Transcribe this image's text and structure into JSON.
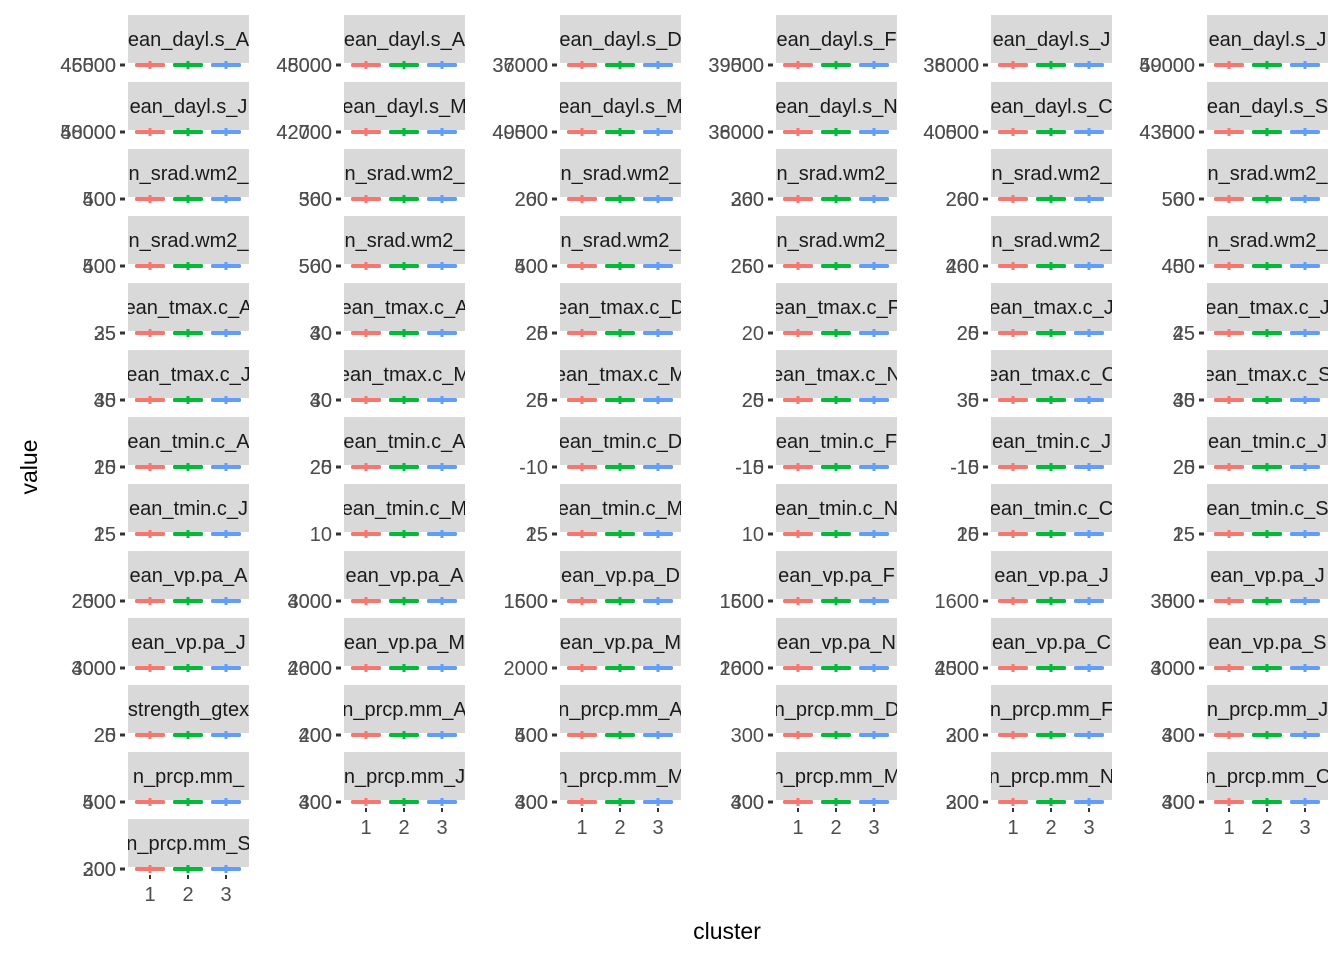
{
  "chart_data": {
    "type": "boxplot-facets",
    "xlabel": "cluster",
    "ylabel": "value",
    "categories": [
      "1",
      "2",
      "3"
    ],
    "colors": {
      "1": "#F8766D",
      "2": "#00BA38",
      "3": "#619CFF"
    },
    "strip_background": "#d9d9d9",
    "panels": [
      {
        "strip": "ean_dayl.s_A",
        "y_ticks": [
          "46500",
          "45000"
        ],
        "x_ticks": false
      },
      {
        "strip": "ean_dayl.s_A",
        "y_ticks": [
          "48000",
          "45000"
        ],
        "x_ticks": false
      },
      {
        "strip": "ean_dayl.s_D",
        "y_ticks": [
          "37000",
          "36000"
        ],
        "x_ticks": false
      },
      {
        "strip": "ean_dayl.s_F",
        "y_ticks": [
          "39000",
          "39500"
        ],
        "x_ticks": false
      },
      {
        "strip": "ean_dayl.s_J",
        "y_ticks": [
          "36000",
          "38000"
        ],
        "x_ticks": false
      },
      {
        "strip": "ean_dayl.s_J",
        "y_ticks": [
          "49000",
          "50000"
        ],
        "x_ticks": false
      },
      {
        "strip": "ean_dayl.s_J",
        "y_ticks": [
          "50000",
          "48000"
        ],
        "x_ticks": false
      },
      {
        "strip": "ean_dayl.s_M",
        "y_ticks": [
          "42000",
          "42700"
        ],
        "x_ticks": false
      },
      {
        "strip": "ean_dayl.s_M",
        "y_ticks": [
          "49500",
          "40000"
        ],
        "x_ticks": false
      },
      {
        "strip": "ean_dayl.s_N",
        "y_ticks": [
          "36000",
          "38000"
        ],
        "x_ticks": false
      },
      {
        "strip": "ean_dayl.s_C",
        "y_ticks": [
          "40500",
          "40000"
        ],
        "x_ticks": false
      },
      {
        "strip": "ean_dayl.s_S",
        "y_ticks": [
          "43000",
          "43500"
        ],
        "x_ticks": false
      },
      {
        "strip": "n_srad.wm2_",
        "y_ticks": [
          "400",
          "500"
        ],
        "x_ticks": false
      },
      {
        "strip": "n_srad.wm2_",
        "y_ticks": [
          "500",
          "360"
        ],
        "x_ticks": false
      },
      {
        "strip": "n_srad.wm2_",
        "y_ticks": [
          "200",
          "260"
        ],
        "x_ticks": false
      },
      {
        "strip": "n_srad.wm2_",
        "y_ticks": [
          "300",
          "260"
        ],
        "x_ticks": false
      },
      {
        "strip": "n_srad.wm2_",
        "y_ticks": [
          "200",
          "260"
        ],
        "x_ticks": false
      },
      {
        "strip": "n_srad.wm2_",
        "y_ticks": [
          "500",
          "560"
        ],
        "x_ticks": false
      },
      {
        "strip": "n_srad.wm2_",
        "y_ticks": [
          "500",
          "400"
        ],
        "x_ticks": false
      },
      {
        "strip": "n_srad.wm2_",
        "y_ticks": [
          "560",
          "500"
        ],
        "x_ticks": false
      },
      {
        "strip": "n_srad.wm2_",
        "y_ticks": [
          "500",
          "400"
        ],
        "x_ticks": false
      },
      {
        "strip": "n_srad.wm2_",
        "y_ticks": [
          "260",
          "250"
        ],
        "x_ticks": false
      },
      {
        "strip": "n_srad.wm2_",
        "y_ticks": [
          "400",
          "260"
        ],
        "x_ticks": false
      },
      {
        "strip": "n_srad.wm2_",
        "y_ticks": [
          "450",
          "400"
        ],
        "x_ticks": false
      },
      {
        "strip": "ean_tmax.c_A",
        "y_ticks": [
          "35",
          "25"
        ],
        "x_ticks": false
      },
      {
        "strip": "ean_tmax.c_A",
        "y_ticks": [
          "30",
          "40"
        ],
        "x_ticks": false
      },
      {
        "strip": "ean_tmax.c_D",
        "y_ticks": [
          "25",
          "20"
        ],
        "x_ticks": false
      },
      {
        "strip": "ean_tmax.c_F",
        "y_ticks": [
          "20"
        ],
        "x_ticks": false
      },
      {
        "strip": "ean_tmax.c_J",
        "y_ticks": [
          "20",
          "25"
        ],
        "x_ticks": false
      },
      {
        "strip": "ean_tmax.c_J",
        "y_ticks": [
          "45",
          "25"
        ],
        "x_ticks": false
      },
      {
        "strip": "ean_tmax.c_J",
        "y_ticks": [
          "35",
          "40"
        ],
        "x_ticks": false
      },
      {
        "strip": "ean_tmax.c_M",
        "y_ticks": [
          "30",
          "40"
        ],
        "x_ticks": false
      },
      {
        "strip": "ean_tmax.c_M",
        "y_ticks": [
          "25",
          "20"
        ],
        "x_ticks": false
      },
      {
        "strip": "ean_tmax.c_N",
        "y_ticks": [
          "25",
          "20"
        ],
        "x_ticks": false
      },
      {
        "strip": "ean_tmax.c_C",
        "y_ticks": [
          "35",
          "30"
        ],
        "x_ticks": false
      },
      {
        "strip": "ean_tmax.c_S",
        "y_ticks": [
          "40",
          "35"
        ],
        "x_ticks": false
      },
      {
        "strip": "ean_tmin.c_A",
        "y_ticks": [
          "20",
          "15"
        ],
        "x_ticks": false
      },
      {
        "strip": "ean_tmin.c_A",
        "y_ticks": [
          "25",
          "20"
        ],
        "x_ticks": false
      },
      {
        "strip": "ean_tmin.c_D",
        "y_ticks": [
          "-10"
        ],
        "x_ticks": false
      },
      {
        "strip": "ean_tmin.c_F",
        "y_ticks": [
          "-15",
          "-10"
        ],
        "x_ticks": false
      },
      {
        "strip": "ean_tmin.c_J",
        "y_ticks": [
          "-15",
          "-10"
        ],
        "x_ticks": false
      },
      {
        "strip": "ean_tmin.c_J",
        "y_ticks": [
          "25",
          "20"
        ],
        "x_ticks": false
      },
      {
        "strip": "ean_tmin.c_J",
        "y_ticks": [
          "25",
          "15"
        ],
        "x_ticks": false
      },
      {
        "strip": "ean_tmin.c_M",
        "y_ticks": [
          "10"
        ],
        "x_ticks": false
      },
      {
        "strip": "ean_tmin.c_M",
        "y_ticks": [
          "25",
          "15"
        ],
        "x_ticks": false
      },
      {
        "strip": "ean_tmin.c_N",
        "y_ticks": [
          "10"
        ],
        "x_ticks": false
      },
      {
        "strip": "ean_tmin.c_C",
        "y_ticks": [
          "20",
          "15"
        ],
        "x_ticks": false
      },
      {
        "strip": "ean_tmin.c_S",
        "y_ticks": [
          "25",
          "15"
        ],
        "x_ticks": false
      },
      {
        "strip": "ean_vp.pa_A",
        "y_ticks": [
          "2500",
          "2000"
        ],
        "x_ticks": false
      },
      {
        "strip": "ean_vp.pa_A",
        "y_ticks": [
          "3000",
          "4000"
        ],
        "x_ticks": false
      },
      {
        "strip": "ean_vp.pa_D",
        "y_ticks": [
          "1600",
          "1500"
        ],
        "x_ticks": false
      },
      {
        "strip": "ean_vp.pa_F",
        "y_ticks": [
          "1500",
          "1600"
        ],
        "x_ticks": false
      },
      {
        "strip": "ean_vp.pa_J",
        "y_ticks": [
          "1600"
        ],
        "x_ticks": false
      },
      {
        "strip": "ean_vp.pa_J",
        "y_ticks": [
          "3000",
          "3500"
        ],
        "x_ticks": false
      },
      {
        "strip": "ean_vp.pa_J",
        "y_ticks": [
          "3000",
          "4000"
        ],
        "x_ticks": false
      },
      {
        "strip": "ean_vp.pa_M",
        "y_ticks": [
          "2600",
          "4000"
        ],
        "x_ticks": false
      },
      {
        "strip": "ean_vp.pa_M",
        "y_ticks": [
          "2000"
        ],
        "x_ticks": false
      },
      {
        "strip": "ean_vp.pa_N",
        "y_ticks": [
          "1600",
          "2000"
        ],
        "x_ticks": false
      },
      {
        "strip": "ean_vp.pa_C",
        "y_ticks": [
          "2500",
          "4000"
        ],
        "x_ticks": false
      },
      {
        "strip": "ean_vp.pa_S",
        "y_ticks": [
          "3000",
          "4000"
        ],
        "x_ticks": false
      },
      {
        "strip": "strength_gtex",
        "y_ticks": [
          "25",
          "20"
        ],
        "x_ticks": false
      },
      {
        "strip": "n_prcp.mm_A",
        "y_ticks": [
          "400",
          "200"
        ],
        "x_ticks": false
      },
      {
        "strip": "n_prcp.mm_A",
        "y_ticks": [
          "500",
          "400"
        ],
        "x_ticks": false
      },
      {
        "strip": "n_prcp.mm_D",
        "y_ticks": [
          "300"
        ],
        "x_ticks": false
      },
      {
        "strip": "n_prcp.mm_F",
        "y_ticks": [
          "300",
          "200"
        ],
        "x_ticks": false
      },
      {
        "strip": "n_prcp.mm_J",
        "y_ticks": [
          "400",
          "300"
        ],
        "x_ticks": false
      },
      {
        "strip": "n_prcp.mm_",
        "y_ticks": [
          "400",
          "500"
        ],
        "x_ticks": false
      },
      {
        "strip": "n_prcp.mm_J",
        "y_ticks": [
          "400",
          "300"
        ],
        "x_ticks": true
      },
      {
        "strip": "n_prcp.mm_M",
        "y_ticks": [
          "400",
          "300"
        ],
        "x_ticks": true
      },
      {
        "strip": "n_prcp.mm_M",
        "y_ticks": [
          "400",
          "300"
        ],
        "x_ticks": true
      },
      {
        "strip": "n_prcp.mm_N",
        "y_ticks": [
          "300",
          "200"
        ],
        "x_ticks": true
      },
      {
        "strip": "n_prcp.mm_C",
        "y_ticks": [
          "400",
          "300"
        ],
        "x_ticks": true
      },
      {
        "strip": "n_prcp.mm_S",
        "y_ticks": [
          "300",
          "200"
        ],
        "x_ticks": true
      }
    ]
  }
}
